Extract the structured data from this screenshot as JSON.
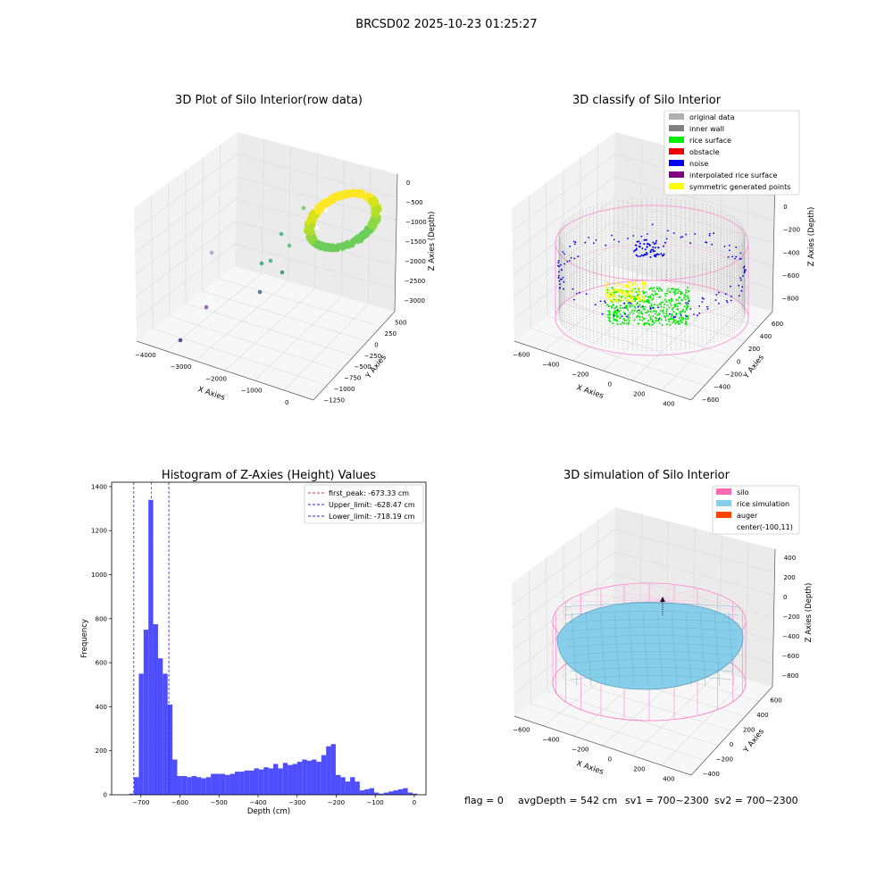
{
  "suptitle": "BRCSD02 2025-10-23 01:25:27",
  "chart_data": [
    {
      "type": "scatter3d",
      "title": "3D Plot of Silo Interior(row data)",
      "xlabel": "X Axies",
      "ylabel": "Y Axies",
      "zlabel": "Z Axies (Depth)",
      "x_ticks": [
        "−4000",
        "−3000",
        "−2000",
        "−1000",
        "0"
      ],
      "y_ticks": [
        "−1250",
        "−1000",
        "−750",
        "−500",
        "−250",
        "0",
        "250",
        "500"
      ],
      "z_ticks": [
        "0",
        "−500",
        "−1000",
        "−1500",
        "−2000",
        "−2500",
        "−3000"
      ],
      "colormap": "viridis",
      "grid": true
    },
    {
      "type": "scatter3d",
      "title": "3D classify of Silo Interior",
      "xlabel": "X Axies",
      "ylabel": "Y Axies",
      "zlabel": "Z Axies (Depth)",
      "x_ticks": [
        "−600",
        "−400",
        "−200",
        "0",
        "200",
        "400"
      ],
      "y_ticks": [
        "−600",
        "−400",
        "−200",
        "0",
        "200",
        "400",
        "600"
      ],
      "z_ticks": [
        "200",
        "0",
        "−200",
        "−400",
        "−600",
        "−800"
      ],
      "legend_position": "top-right",
      "legend": [
        {
          "label": "original data",
          "color": "#b0b0b0"
        },
        {
          "label": "inner wall",
          "color": "#808080"
        },
        {
          "label": "rice surface",
          "color": "#00ee00"
        },
        {
          "label": "obstacle",
          "color": "#ee0000"
        },
        {
          "label": "noise",
          "color": "#0000ee"
        },
        {
          "label": "interpolated rice surface",
          "color": "#800080"
        },
        {
          "label": "symmetric generated points",
          "color": "#ffff00"
        }
      ],
      "grid": true
    },
    {
      "type": "bar",
      "title": "Histogram of Z-Axies (Height) Values",
      "xlabel": "Depth (cm)",
      "ylabel": "Frequency",
      "xlim": [
        -775,
        30
      ],
      "ylim": [
        0,
        1420
      ],
      "x_ticks": [
        -700,
        -600,
        -500,
        -400,
        -300,
        -200,
        -100,
        0
      ],
      "x_tick_labels": [
        "−700",
        "−600",
        "−500",
        "−400",
        "−300",
        "−200",
        "−100",
        "0"
      ],
      "y_ticks": [
        0,
        200,
        400,
        600,
        800,
        1000,
        1200,
        1400
      ],
      "bin_width": 12.3,
      "bins_start": [
        -730,
        -717.7,
        -705.4,
        -693.1,
        -680.8,
        -668.5,
        -656.2,
        -643.9,
        -631.6,
        -619.3,
        -607,
        -594.7,
        -582.4,
        -570.1,
        -557.8,
        -545.5,
        -533.2,
        -520.9,
        -508.6,
        -496.3,
        -484,
        -471.7,
        -459.4,
        -447.1,
        -434.8,
        -422.5,
        -410.2,
        -397.9,
        -385.6,
        -373.3,
        -361,
        -348.7,
        -336.4,
        -324.1,
        -311.8,
        -299.5,
        -287.2,
        -274.9,
        -262.6,
        -250.3,
        -238,
        -225.7,
        -213.4,
        -201.1,
        -188.8,
        -176.5,
        -164.2,
        -151.9,
        -139.6,
        -127.3,
        -115,
        -102.7,
        -90.4,
        -78.1,
        -65.8,
        -53.5,
        -41.2,
        -28.9,
        -16.6,
        -4.3
      ],
      "counts": [
        5,
        80,
        550,
        750,
        1340,
        775,
        620,
        550,
        410,
        160,
        85,
        85,
        80,
        85,
        80,
        75,
        80,
        95,
        95,
        95,
        90,
        95,
        105,
        105,
        110,
        110,
        120,
        115,
        125,
        120,
        140,
        120,
        145,
        135,
        140,
        150,
        160,
        155,
        160,
        150,
        180,
        220,
        230,
        90,
        80,
        60,
        80,
        60,
        20,
        25,
        30,
        10,
        5,
        10,
        15,
        20,
        25,
        30,
        10,
        5
      ],
      "bar_color": "#3f3fff",
      "vlines": [
        {
          "label": "first_peak: -673.33 cm",
          "x": -673.33,
          "color": "#e03030"
        },
        {
          "label": "Upper_limit: -628.47 cm",
          "x": -628.47,
          "color": "#2020dd"
        },
        {
          "label": "Lower_limit: -718.19 cm",
          "x": -718.19,
          "color": "#2020dd"
        }
      ],
      "legend_position": "top-right",
      "grid": false
    },
    {
      "type": "surface3d",
      "title": "3D simulation of Silo Interior",
      "xlabel": "X Axies",
      "ylabel": "Y Axies",
      "zlabel": "Z Axies (Depth)",
      "x_ticks": [
        "−600",
        "−400",
        "−200",
        "0",
        "200",
        "400"
      ],
      "y_ticks": [
        "−400",
        "−200",
        "0",
        "200",
        "400",
        "600"
      ],
      "z_ticks": [
        "400",
        "200",
        "0",
        "−200",
        "−400",
        "−600",
        "−800"
      ],
      "legend_position": "top-right",
      "legend": [
        {
          "label": "silo",
          "color": "#ff69b4"
        },
        {
          "label": "rice simulation",
          "color": "#87ceeb"
        },
        {
          "label": "auger",
          "color": "#ff4500"
        },
        {
          "label": "center(-100,11)",
          "color": ""
        }
      ],
      "grid": true
    }
  ],
  "status": {
    "flag": "flag = 0",
    "avg_depth": "avgDepth = 542 cm",
    "sv1": "sv1 = 700~2300",
    "sv2": "sv2 = 700~2300"
  }
}
